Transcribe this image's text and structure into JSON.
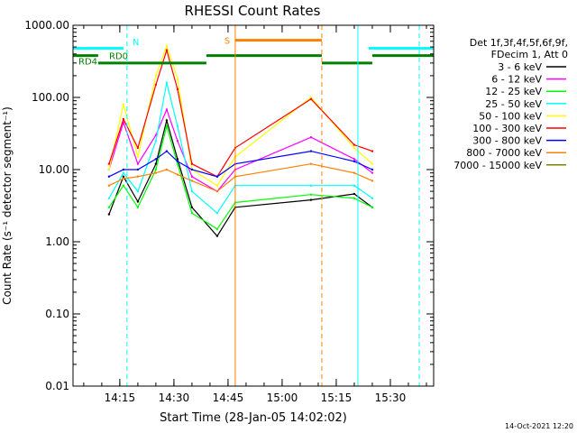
{
  "chart_data": {
    "type": "line",
    "title": "RHESSI Count Rates",
    "xlabel": "Start Time (28-Jan-05 14:02:02)",
    "ylabel": "Count Rate (s⁻¹ detector segment⁻¹)",
    "yscale": "log",
    "ylim": [
      0.01,
      1000
    ],
    "xlim": [
      "14:02:02",
      "15:42:00"
    ],
    "yticks": [
      "0.01",
      "0.10",
      "1.00",
      "10.00",
      "100.00",
      "1000.00"
    ],
    "xticks": [
      "14:15",
      "14:30",
      "14:45",
      "15:00",
      "15:15",
      "15:30"
    ],
    "grid": false,
    "legend_position": "top-right",
    "legend_header": [
      "Det 1f,3f,4f,5f,6f,9f,",
      "FDecim 1, Att 0"
    ],
    "series": [
      {
        "name": "3 - 6 keV",
        "color": "#000000",
        "x": [
          "14:12",
          "14:16",
          "14:20",
          "14:25",
          "14:28",
          "14:31",
          "14:35",
          "14:42",
          "14:47",
          "15:08",
          "15:20",
          "15:25"
        ],
        "values": [
          2.4,
          8,
          3.6,
          12,
          48,
          14,
          3,
          1.2,
          3,
          3.8,
          4.6,
          3
        ]
      },
      {
        "name": "6 - 12 keV",
        "color": "#ff00ff",
        "x": [
          "14:12",
          "14:16",
          "14:20",
          "14:25",
          "14:28",
          "14:31",
          "14:35",
          "14:42",
          "14:47",
          "15:08",
          "15:20",
          "15:25"
        ],
        "values": [
          10,
          45,
          12,
          30,
          68,
          25,
          8,
          5,
          10,
          28,
          14,
          9
        ]
      },
      {
        "name": "12 - 25 keV",
        "color": "#00ff00",
        "x": [
          "14:12",
          "14:16",
          "14:20",
          "14:25",
          "14:28",
          "14:31",
          "14:35",
          "14:42",
          "14:47",
          "15:08",
          "15:20",
          "15:25"
        ],
        "values": [
          3,
          6,
          3,
          10,
          40,
          12,
          2.5,
          1.5,
          3.5,
          4.5,
          4,
          3
        ]
      },
      {
        "name": "25 - 50 keV",
        "color": "#00ffff",
        "x": [
          "14:12",
          "14:16",
          "14:20",
          "14:25",
          "14:28",
          "14:31",
          "14:35",
          "14:42",
          "14:47",
          "15:08",
          "15:20",
          "15:25"
        ],
        "values": [
          4,
          9,
          5,
          25,
          160,
          40,
          5,
          2.5,
          6,
          6,
          6,
          4
        ]
      },
      {
        "name": "50 - 100 keV",
        "color": "#ffff00",
        "x": [
          "14:12",
          "14:16",
          "14:20",
          "14:25",
          "14:28",
          "14:31",
          "14:35",
          "14:42",
          "14:47",
          "15:08",
          "15:20",
          "15:25"
        ],
        "values": [
          10,
          80,
          15,
          200,
          520,
          180,
          10,
          6,
          15,
          100,
          20,
          12
        ]
      },
      {
        "name": "100 - 300 keV",
        "color": "#ff0000",
        "x": [
          "14:12",
          "14:16",
          "14:20",
          "14:25",
          "14:28",
          "14:31",
          "14:35",
          "14:42",
          "14:47",
          "15:08",
          "15:20",
          "15:25"
        ],
        "values": [
          12,
          50,
          20,
          150,
          450,
          130,
          12,
          8,
          20,
          95,
          22,
          18
        ]
      },
      {
        "name": "300 - 800 keV",
        "color": "#0000ff",
        "x": [
          "14:12",
          "14:16",
          "14:20",
          "14:25",
          "14:28",
          "14:31",
          "14:35",
          "14:42",
          "14:47",
          "15:08",
          "15:20",
          "15:25"
        ],
        "values": [
          8,
          10,
          10,
          14,
          18,
          13,
          10,
          8,
          12,
          18,
          13,
          10
        ]
      },
      {
        "name": "800 - 7000 keV",
        "color": "#ff8000",
        "x": [
          "14:12",
          "14:16",
          "14:20",
          "14:25",
          "14:28",
          "14:31",
          "14:35",
          "14:42",
          "14:47",
          "15:08",
          "15:20",
          "15:25"
        ],
        "values": [
          6,
          7.5,
          8,
          9,
          10,
          8.5,
          7,
          5,
          8,
          12,
          9,
          7
        ]
      },
      {
        "name": "7000 - 15000 keV",
        "color": "#808000",
        "x": [],
        "values": []
      }
    ],
    "annotations": [
      {
        "type": "attenuator_bar",
        "label": "RD0",
        "color": "#00ffff",
        "level": 480,
        "x": [
          "14:02:02",
          "14:16"
        ]
      },
      {
        "type": "attenuator_bar",
        "label": "",
        "color": "#00ffff",
        "level": 480,
        "x": [
          "15:24",
          "15:42"
        ]
      },
      {
        "type": "attenuator_bar",
        "label": "RD4",
        "color": "#008000",
        "level": 380,
        "x": [
          "14:02:02",
          "14:09"
        ]
      },
      {
        "type": "attenuator_bar",
        "label": "",
        "color": "#008000",
        "level": 300,
        "x": [
          "14:09",
          "14:39"
        ]
      },
      {
        "type": "attenuator_bar",
        "label": "",
        "color": "#008000",
        "level": 380,
        "x": [
          "14:39",
          "15:11"
        ]
      },
      {
        "type": "attenuator_bar",
        "label": "",
        "color": "#008000",
        "level": 300,
        "x": [
          "15:11",
          "15:25"
        ]
      },
      {
        "type": "attenuator_bar",
        "label": "",
        "color": "#008000",
        "level": 380,
        "x": [
          "15:25",
          "15:42"
        ]
      },
      {
        "type": "attenuator_bar",
        "label": "S",
        "color": "#ff8000",
        "level": 620,
        "x": [
          "14:47",
          "15:11"
        ]
      },
      {
        "type": "vline",
        "label": "N",
        "color": "#00ffff",
        "dash": true,
        "x": "14:17"
      },
      {
        "type": "vline",
        "label": "",
        "color": "#00ffff",
        "dash": false,
        "x": "15:21"
      },
      {
        "type": "vline",
        "label": "",
        "color": "#00ffff",
        "dash": true,
        "x": "15:38"
      },
      {
        "type": "vline",
        "label": "",
        "color": "#ff8000",
        "dash": false,
        "x": "14:47"
      },
      {
        "type": "vline",
        "label": "",
        "color": "#ff8000",
        "dash": true,
        "x": "15:11"
      }
    ]
  },
  "footer_timestamp": "14-Oct-2021 12:20"
}
